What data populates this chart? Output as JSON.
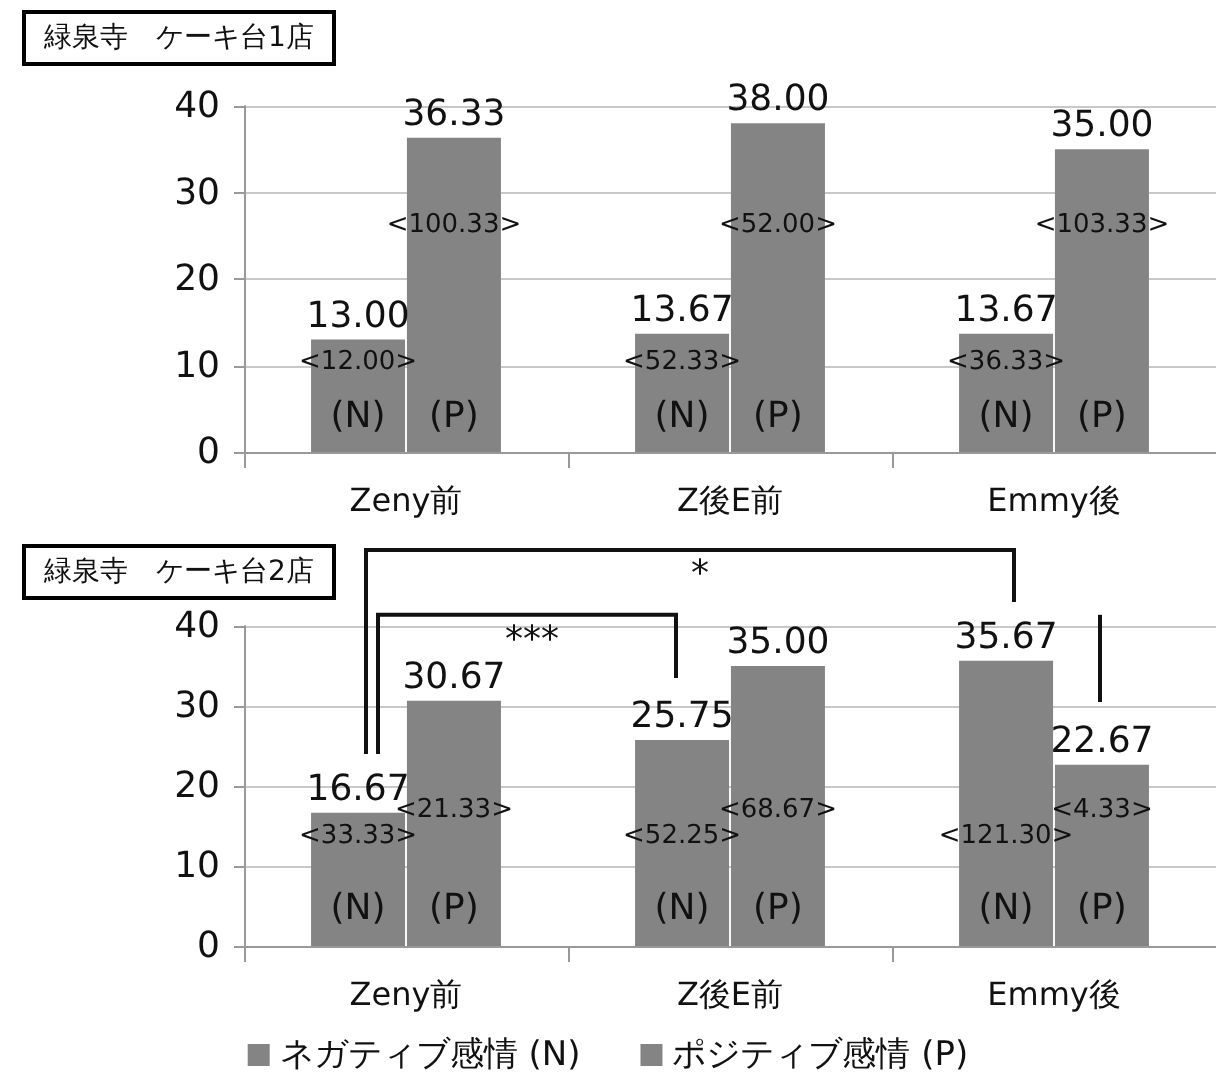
{
  "chart_data": [
    {
      "type": "bar",
      "title": "緑泉寺　ケーキ台1店",
      "categories": [
        "Zeny前",
        "Z後E前",
        "Emmy後"
      ],
      "series": [
        {
          "color": "#848484",
          "values": [
            13.0,
            13.67,
            13.67
          ],
          "value_labels": [
            "13.00",
            "13.67",
            "13.67"
          ]
        },
        {
          "color": "#848484",
          "values": [
            36.33,
            38.0,
            35.0
          ],
          "value_labels": [
            "36.33",
            "38.00",
            "35.00"
          ]
        }
      ],
      "ylim": [
        0,
        40
      ],
      "yticks": [
        0,
        10,
        20,
        30,
        40
      ],
      "grid": "y",
      "legend": false,
      "annotations": [
        {
          "text": "<12.00>",
          "x": "Zeny前",
          "y": 10.4
        },
        {
          "text": "<100.33>",
          "x": "Zeny前",
          "y": 26.3
        },
        {
          "text": "(N)",
          "x": "Zeny前",
          "y": 4.2
        },
        {
          "text": "(P)",
          "x": "Zeny前",
          "y": 4.2
        },
        {
          "text": "<52.33>",
          "x": "Z後E前",
          "y": 10.4
        },
        {
          "text": "<52.00>",
          "x": "Z後E前",
          "y": 26.3
        },
        {
          "text": "(N)",
          "x": "Z後E前",
          "y": 4.2
        },
        {
          "text": "(P)",
          "x": "Z後E前",
          "y": 4.2
        },
        {
          "text": "<36.33>",
          "x": "Emmy後",
          "y": 10.4
        },
        {
          "text": "<103.33>",
          "x": "Emmy後",
          "y": 26.3
        },
        {
          "text": "(N)",
          "x": "Emmy後",
          "y": 4.2
        },
        {
          "text": "(P)",
          "x": "Emmy後",
          "y": 4.2
        }
      ]
    },
    {
      "type": "bar",
      "title": "緑泉寺　ケーキ台2店",
      "categories": [
        "Zeny前",
        "Z後E前",
        "Emmy後"
      ],
      "series": [
        {
          "name": "ネガティブ感情 (N)",
          "color": "#848484",
          "values": [
            16.67,
            25.75,
            35.67
          ],
          "value_labels": [
            "16.67",
            "25.75",
            "35.67"
          ]
        },
        {
          "name": "ポジティブ感情 (P)",
          "color": "#848484",
          "values": [
            30.67,
            35.0,
            22.67
          ],
          "value_labels": [
            "30.67",
            "35.00",
            "22.67"
          ]
        }
      ],
      "ylim": [
        0,
        40
      ],
      "yticks": [
        0,
        10,
        20,
        30,
        40
      ],
      "grid": "y",
      "legend": "bottom",
      "annotations": [
        "***",
        "*",
        {
          "text": "<33.33>",
          "x": "Zeny前",
          "y": 13.7
        },
        {
          "text": "<21.33>",
          "x": "Zeny前",
          "y": 17.0
        },
        {
          "text": "(N)",
          "x": "Zeny前",
          "y": 4.7
        },
        {
          "text": "(P)",
          "x": "Zeny前",
          "y": 4.7
        },
        {
          "text": "<52.25>",
          "x": "Z後E前",
          "y": 13.7
        },
        {
          "text": "<68.67>",
          "x": "Z後E前",
          "y": 17.0
        },
        {
          "text": "(N)",
          "x": "Z後E前",
          "y": 4.7
        },
        {
          "text": "(P)",
          "x": "Z後E前",
          "y": 4.7
        },
        {
          "text": "<121.30>",
          "x": "Emmy後",
          "y": 13.7
        },
        {
          "text": "<4.33>",
          "x": "Emmy後",
          "y": 17.0
        },
        {
          "text": "(N)",
          "x": "Emmy後",
          "y": 4.7
        },
        {
          "text": "(P)",
          "x": "Emmy後",
          "y": 4.7
        }
      ]
    }
  ]
}
